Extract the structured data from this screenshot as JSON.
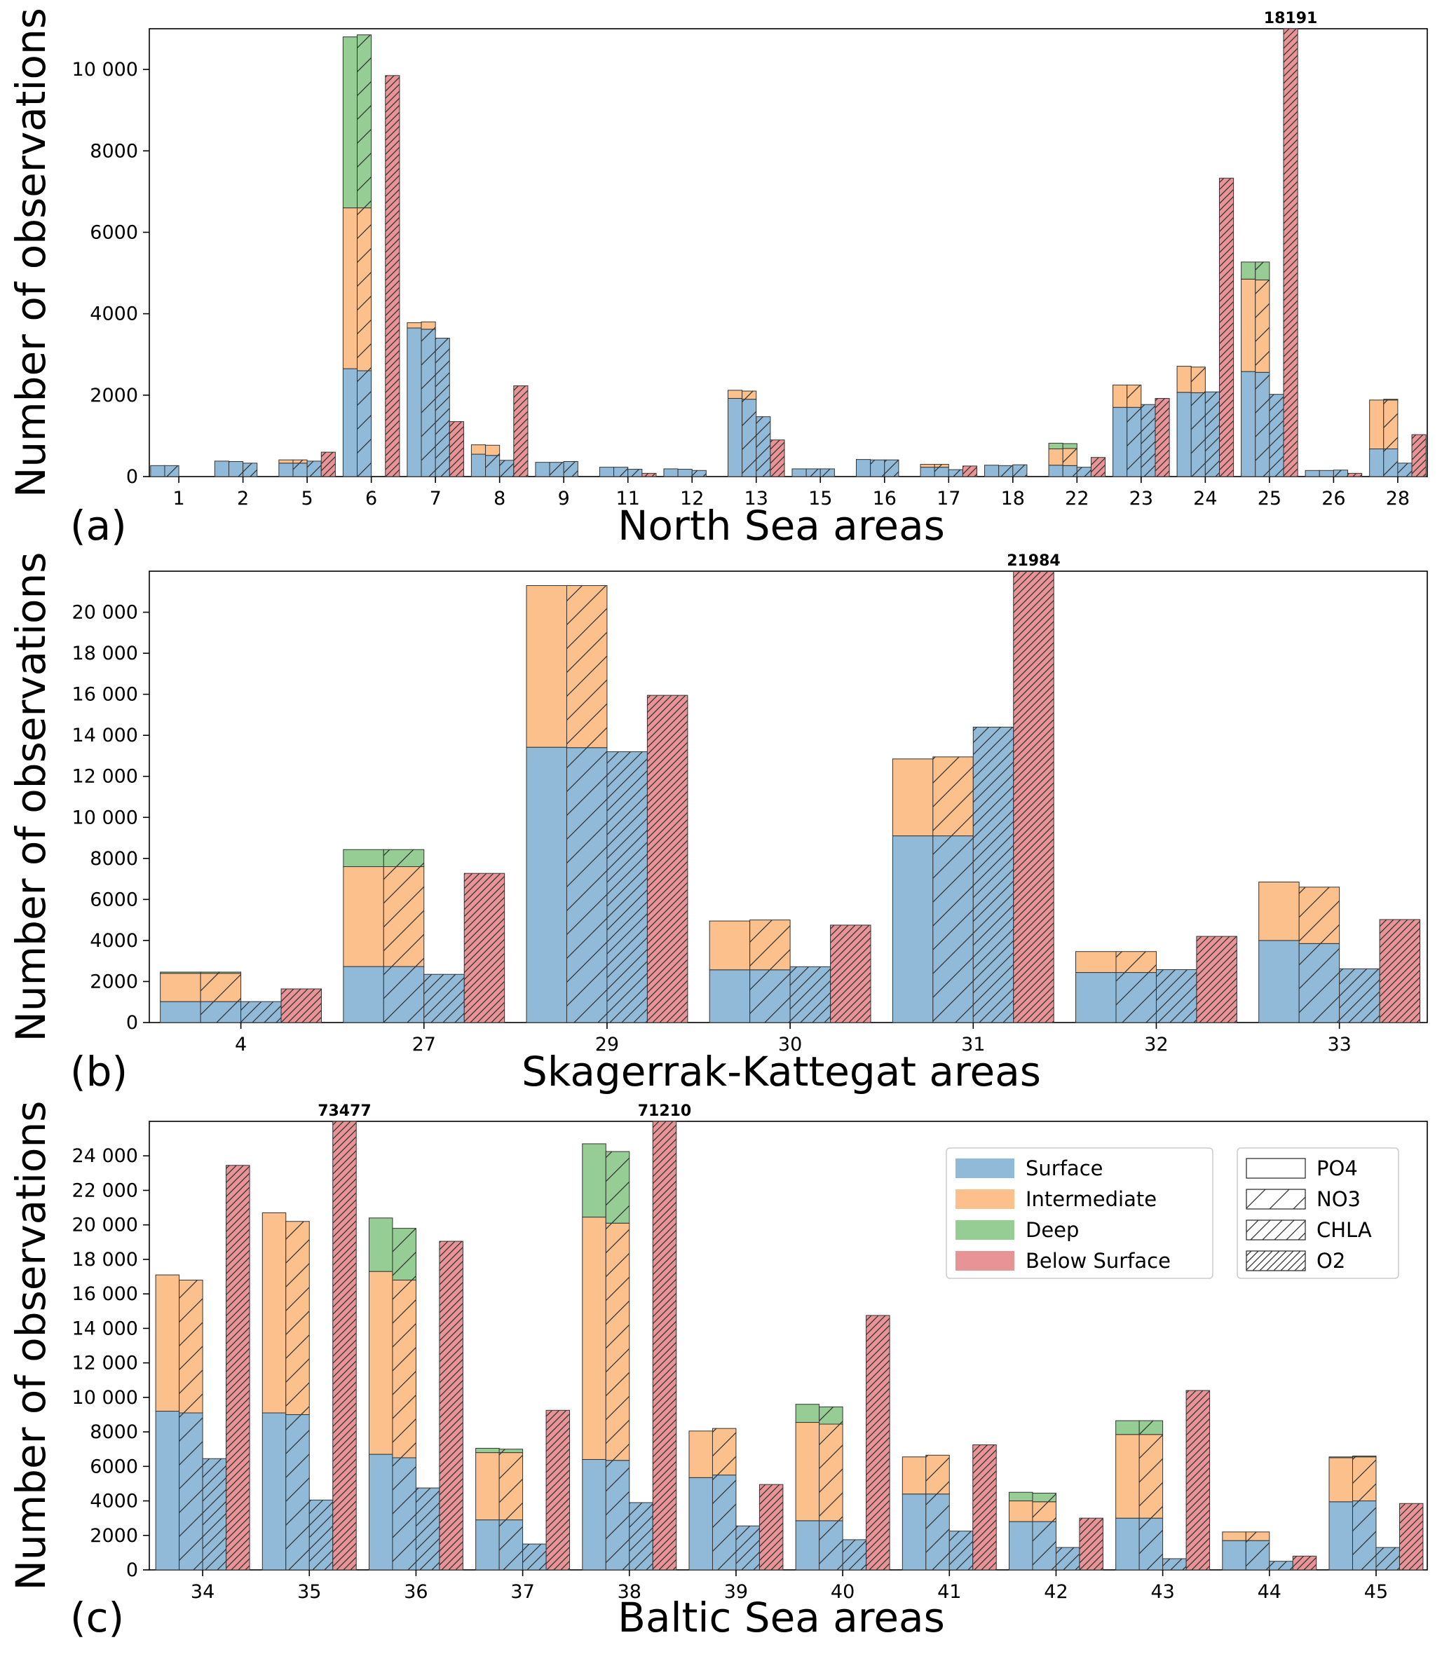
{
  "colors": {
    "surface": "#91bad9",
    "intermediate": "#fcc08c",
    "deep": "#96cd94",
    "below": "#e89396",
    "edge": "#333333"
  },
  "legend": {
    "layers": [
      {
        "key": "surface",
        "label": "Surface"
      },
      {
        "key": "intermediate",
        "label": "Intermediate"
      },
      {
        "key": "deep",
        "label": "Deep"
      },
      {
        "key": "below",
        "label": "Below Surface"
      }
    ],
    "parameters": [
      {
        "key": "PO4",
        "label": "PO4",
        "hatch": "none"
      },
      {
        "key": "NO3",
        "label": "NO3",
        "hatch": "sparse"
      },
      {
        "key": "CHLA",
        "label": "CHLA",
        "hatch": "medium"
      },
      {
        "key": "O2",
        "label": "O2",
        "hatch": "dense"
      }
    ],
    "placement": "upper-right of panel (c)"
  },
  "chart_data": [
    {
      "type": "bar",
      "panel": "(a)",
      "xlabel": "North Sea areas",
      "ylabel": "Number of observations",
      "ylim": [
        0,
        11000
      ],
      "yticks": [
        0,
        2000,
        4000,
        6000,
        8000,
        10000
      ],
      "yticklabels": [
        "0",
        "2000",
        "4000",
        "6000",
        "8000",
        "10 000"
      ],
      "categories": [
        "1",
        "2",
        "5",
        "6",
        "7",
        "8",
        "9",
        "11",
        "12",
        "13",
        "15",
        "16",
        "17",
        "18",
        "22",
        "23",
        "24",
        "25",
        "26",
        "28"
      ],
      "bars": [
        [
          [
            270,
            0,
            0
          ],
          [
            270,
            0,
            0
          ],
          [
            0,
            0,
            0
          ],
          [
            0
          ]
        ],
        [
          [
            380,
            0,
            0
          ],
          [
            370,
            0,
            0
          ],
          [
            330,
            0,
            0
          ],
          [
            0
          ]
        ],
        [
          [
            330,
            80,
            0
          ],
          [
            330,
            80,
            0
          ],
          [
            380,
            0,
            0
          ],
          [
            600
          ]
        ],
        [
          [
            2650,
            3950,
            4200
          ],
          [
            2600,
            4000,
            4250
          ],
          [
            0,
            0,
            0
          ],
          [
            9850
          ]
        ],
        [
          [
            3650,
            130,
            0
          ],
          [
            3620,
            180,
            0
          ],
          [
            3400,
            0,
            0
          ],
          [
            1350
          ]
        ],
        [
          [
            550,
            230,
            0
          ],
          [
            520,
            250,
            0
          ],
          [
            400,
            0,
            0
          ],
          [
            2230
          ]
        ],
        [
          [
            350,
            0,
            0
          ],
          [
            350,
            0,
            0
          ],
          [
            370,
            0,
            0
          ],
          [
            0
          ]
        ],
        [
          [
            230,
            0,
            0
          ],
          [
            230,
            0,
            0
          ],
          [
            180,
            0,
            0
          ],
          [
            80
          ]
        ],
        [
          [
            190,
            0,
            0
          ],
          [
            180,
            0,
            0
          ],
          [
            150,
            0,
            0
          ],
          [
            0
          ]
        ],
        [
          [
            1920,
            200,
            0
          ],
          [
            1900,
            200,
            0
          ],
          [
            1470,
            0,
            0
          ],
          [
            900
          ]
        ],
        [
          [
            190,
            0,
            0
          ],
          [
            190,
            0,
            0
          ],
          [
            190,
            0,
            0
          ],
          [
            0
          ]
        ],
        [
          [
            420,
            0,
            0
          ],
          [
            410,
            0,
            0
          ],
          [
            410,
            0,
            0
          ],
          [
            0
          ]
        ],
        [
          [
            230,
            70,
            0
          ],
          [
            230,
            70,
            0
          ],
          [
            170,
            0,
            0
          ],
          [
            260
          ]
        ],
        [
          [
            280,
            0,
            0
          ],
          [
            270,
            0,
            0
          ],
          [
            290,
            0,
            0
          ],
          [
            0
          ]
        ],
        [
          [
            280,
            400,
            140
          ],
          [
            270,
            420,
            120
          ],
          [
            230,
            0,
            0
          ],
          [
            470
          ]
        ],
        [
          [
            1700,
            550,
            0
          ],
          [
            1700,
            550,
            0
          ],
          [
            1770,
            0,
            0
          ],
          [
            1920
          ]
        ],
        [
          [
            2070,
            640,
            0
          ],
          [
            2060,
            630,
            0
          ],
          [
            2080,
            0,
            0
          ],
          [
            7330
          ]
        ],
        [
          [
            2580,
            2270,
            420
          ],
          [
            2560,
            2270,
            440
          ],
          [
            2020,
            0,
            0
          ],
          [
            18191
          ]
        ],
        [
          [
            150,
            0,
            0
          ],
          [
            150,
            0,
            0
          ],
          [
            160,
            0,
            0
          ],
          [
            80
          ]
        ],
        [
          [
            680,
            1200,
            0
          ],
          [
            680,
            1200,
            20
          ],
          [
            330,
            0,
            0
          ],
          [
            1030
          ]
        ]
      ],
      "overflow_labels": [
        {
          "category": "25",
          "text": "18191"
        }
      ]
    },
    {
      "type": "bar",
      "panel": "(b)",
      "xlabel": "Skagerrak-Kattegat areas",
      "ylabel": "Number of observations",
      "ylim": [
        0,
        22000
      ],
      "yticks": [
        0,
        2000,
        4000,
        6000,
        8000,
        10000,
        12000,
        14000,
        16000,
        18000,
        20000
      ],
      "yticklabels": [
        "0",
        "2000",
        "4000",
        "6000",
        "8000",
        "10 000",
        "12 000",
        "14 000",
        "16 000",
        "18 000",
        "20 000"
      ],
      "categories": [
        "4",
        "27",
        "29",
        "30",
        "31",
        "32",
        "33"
      ],
      "bars": [
        [
          [
            1020,
            1380,
            60
          ],
          [
            1020,
            1380,
            60
          ],
          [
            1020,
            0,
            0
          ],
          [
            1640
          ]
        ],
        [
          [
            2730,
            4870,
            830
          ],
          [
            2730,
            4870,
            830
          ],
          [
            2350,
            0,
            0
          ],
          [
            7270
          ]
        ],
        [
          [
            13420,
            7880,
            0
          ],
          [
            13400,
            7900,
            0
          ],
          [
            13200,
            0,
            0
          ],
          [
            15950
          ]
        ],
        [
          [
            2570,
            2380,
            0
          ],
          [
            2570,
            2430,
            0
          ],
          [
            2720,
            0,
            0
          ],
          [
            4750
          ]
        ],
        [
          [
            9100,
            3750,
            0
          ],
          [
            9100,
            3850,
            0
          ],
          [
            14400,
            0,
            0
          ],
          [
            21984
          ]
        ],
        [
          [
            2440,
            1020,
            0
          ],
          [
            2440,
            1020,
            0
          ],
          [
            2580,
            0,
            0
          ],
          [
            4200
          ]
        ],
        [
          [
            4000,
            2850,
            0
          ],
          [
            3850,
            2750,
            0
          ],
          [
            2620,
            0,
            0
          ],
          [
            5020
          ]
        ]
      ],
      "overflow_labels": [
        {
          "category": "31",
          "text": "21984"
        }
      ]
    },
    {
      "type": "bar",
      "panel": "(c)",
      "xlabel": "Baltic Sea areas",
      "ylabel": "Number of observations",
      "ylim": [
        0,
        26000
      ],
      "yticks": [
        0,
        2000,
        4000,
        6000,
        8000,
        10000,
        12000,
        14000,
        16000,
        18000,
        20000,
        22000,
        24000
      ],
      "yticklabels": [
        "0",
        "2000",
        "4000",
        "6000",
        "8000",
        "10 000",
        "12 000",
        "14 000",
        "16 000",
        "18 000",
        "20 000",
        "22 000",
        "24 000"
      ],
      "categories": [
        "34",
        "35",
        "36",
        "37",
        "38",
        "39",
        "40",
        "41",
        "42",
        "43",
        "44",
        "45"
      ],
      "bars": [
        [
          [
            9200,
            7900,
            0
          ],
          [
            9100,
            7700,
            0
          ],
          [
            6450,
            0,
            0
          ],
          [
            23450
          ]
        ],
        [
          [
            9100,
            11600,
            0
          ],
          [
            9000,
            11200,
            0
          ],
          [
            4050,
            0,
            0
          ],
          [
            73477
          ]
        ],
        [
          [
            6700,
            10600,
            3100
          ],
          [
            6500,
            10300,
            3000
          ],
          [
            4750,
            0,
            0
          ],
          [
            19050
          ]
        ],
        [
          [
            2900,
            3900,
            250
          ],
          [
            2900,
            3900,
            200
          ],
          [
            1500,
            0,
            0
          ],
          [
            9250
          ]
        ],
        [
          [
            6400,
            14050,
            4250
          ],
          [
            6350,
            13750,
            4150
          ],
          [
            3900,
            0,
            0
          ],
          [
            71210
          ]
        ],
        [
          [
            5350,
            2700,
            0
          ],
          [
            5500,
            2700,
            0
          ],
          [
            2550,
            0,
            0
          ],
          [
            4950
          ]
        ],
        [
          [
            2850,
            5700,
            1050
          ],
          [
            2850,
            5600,
            1000
          ],
          [
            1750,
            0,
            0
          ],
          [
            14750
          ]
        ],
        [
          [
            4400,
            2150,
            0
          ],
          [
            4400,
            2250,
            0
          ],
          [
            2250,
            0,
            0
          ],
          [
            7250
          ]
        ],
        [
          [
            2800,
            1200,
            500
          ],
          [
            2800,
            1150,
            500
          ],
          [
            1300,
            0,
            0
          ],
          [
            3000
          ]
        ],
        [
          [
            3000,
            4850,
            800
          ],
          [
            3000,
            4850,
            800
          ],
          [
            650,
            0,
            0
          ],
          [
            10400
          ]
        ],
        [
          [
            1700,
            500,
            0
          ],
          [
            1700,
            500,
            0
          ],
          [
            500,
            0,
            0
          ],
          [
            800
          ]
        ],
        [
          [
            3950,
            2550,
            50
          ],
          [
            4000,
            2550,
            50
          ],
          [
            1300,
            0,
            0
          ],
          [
            3850
          ]
        ]
      ],
      "overflow_labels": [
        {
          "category": "35",
          "text": "73477"
        },
        {
          "category": "38",
          "text": "71210"
        }
      ]
    }
  ]
}
